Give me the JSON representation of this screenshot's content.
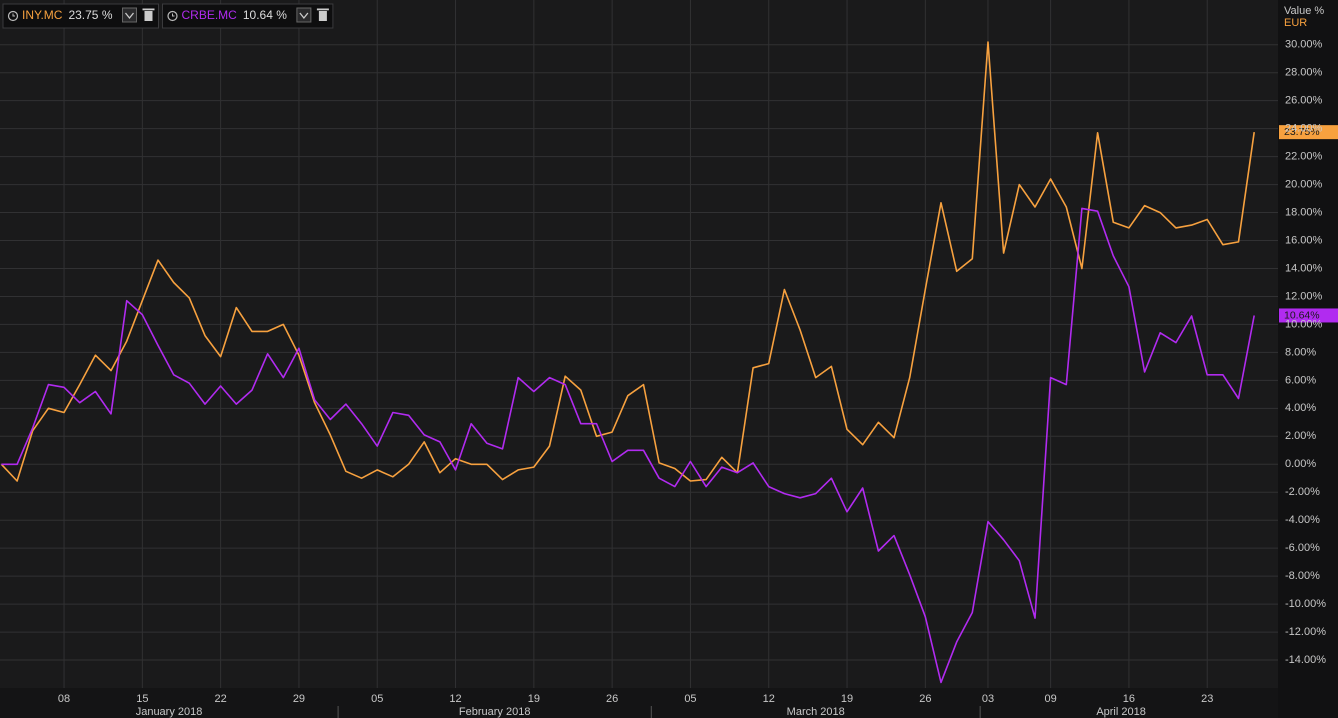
{
  "chart_data": {
    "type": "line",
    "axis_title": "Value %",
    "axis_unit": "EUR",
    "categories": [
      "2018-01-02",
      "2018-01-03",
      "2018-01-04",
      "2018-01-05",
      "2018-01-08",
      "2018-01-09",
      "2018-01-10",
      "2018-01-11",
      "2018-01-12",
      "2018-01-15",
      "2018-01-16",
      "2018-01-17",
      "2018-01-18",
      "2018-01-19",
      "2018-01-22",
      "2018-01-23",
      "2018-01-24",
      "2018-01-25",
      "2018-01-26",
      "2018-01-29",
      "2018-01-30",
      "2018-01-31",
      "2018-02-01",
      "2018-02-02",
      "2018-02-05",
      "2018-02-06",
      "2018-02-07",
      "2018-02-08",
      "2018-02-09",
      "2018-02-12",
      "2018-02-13",
      "2018-02-14",
      "2018-02-15",
      "2018-02-16",
      "2018-02-19",
      "2018-02-20",
      "2018-02-21",
      "2018-02-22",
      "2018-02-23",
      "2018-02-26",
      "2018-02-27",
      "2018-02-28",
      "2018-03-01",
      "2018-03-02",
      "2018-03-05",
      "2018-03-06",
      "2018-03-07",
      "2018-03-08",
      "2018-03-09",
      "2018-03-12",
      "2018-03-13",
      "2018-03-14",
      "2018-03-15",
      "2018-03-16",
      "2018-03-19",
      "2018-03-20",
      "2018-03-21",
      "2018-03-22",
      "2018-03-23",
      "2018-03-26",
      "2018-03-27",
      "2018-03-28",
      "2018-03-29",
      "2018-04-03",
      "2018-04-04",
      "2018-04-05",
      "2018-04-06",
      "2018-04-09",
      "2018-04-10",
      "2018-04-11",
      "2018-04-12",
      "2018-04-13",
      "2018-04-16",
      "2018-04-17",
      "2018-04-18",
      "2018-04-19",
      "2018-04-20",
      "2018-04-23",
      "2018-04-24",
      "2018-04-25",
      "2018-04-26"
    ],
    "xticks": [
      {
        "value": "2018-01-08",
        "label": "08"
      },
      {
        "value": "2018-01-15",
        "label": "15"
      },
      {
        "value": "2018-01-22",
        "label": "22"
      },
      {
        "value": "2018-01-29",
        "label": "29"
      },
      {
        "value": "2018-02-05",
        "label": "05"
      },
      {
        "value": "2018-02-12",
        "label": "12"
      },
      {
        "value": "2018-02-19",
        "label": "19"
      },
      {
        "value": "2018-02-26",
        "label": "26"
      },
      {
        "value": "2018-03-05",
        "label": "05"
      },
      {
        "value": "2018-03-12",
        "label": "12"
      },
      {
        "value": "2018-03-19",
        "label": "19"
      },
      {
        "value": "2018-03-26",
        "label": "26"
      },
      {
        "value": "2018-04-03",
        "label": "03"
      },
      {
        "value": "2018-04-09",
        "label": "09"
      },
      {
        "value": "2018-04-16",
        "label": "16"
      },
      {
        "value": "2018-04-23",
        "label": "23"
      }
    ],
    "months": [
      {
        "value": "2018-01",
        "label": "January 2018"
      },
      {
        "value": "2018-02",
        "label": "February 2018"
      },
      {
        "value": "2018-03",
        "label": "March 2018"
      },
      {
        "value": "2018-04",
        "label": "April 2018"
      }
    ],
    "ylim": [
      -16,
      33.2
    ],
    "yticks": [
      {
        "value": -14,
        "label": "-14.00%"
      },
      {
        "value": -12,
        "label": "-12.00%"
      },
      {
        "value": -10,
        "label": "-10.00%"
      },
      {
        "value": -8,
        "label": "-8.00%"
      },
      {
        "value": -6,
        "label": "-6.00%"
      },
      {
        "value": -4,
        "label": "-4.00%"
      },
      {
        "value": -2,
        "label": "-2.00%"
      },
      {
        "value": 0,
        "label": "0.00%"
      },
      {
        "value": 2,
        "label": "2.00%"
      },
      {
        "value": 4,
        "label": "4.00%"
      },
      {
        "value": 6,
        "label": "6.00%"
      },
      {
        "value": 8,
        "label": "8.00%"
      },
      {
        "value": 10,
        "label": "10.00%"
      },
      {
        "value": 12,
        "label": "12.00%"
      },
      {
        "value": 14,
        "label": "14.00%"
      },
      {
        "value": 16,
        "label": "16.00%"
      },
      {
        "value": 18,
        "label": "18.00%"
      },
      {
        "value": 20,
        "label": "20.00%"
      },
      {
        "value": 22,
        "label": "22.00%"
      },
      {
        "value": 24,
        "label": "24.00%"
      },
      {
        "value": 26,
        "label": "26.00%"
      },
      {
        "value": 28,
        "label": "28.00%"
      },
      {
        "value": 30,
        "label": "30.00%"
      }
    ],
    "grid": true,
    "series": [
      {
        "name": "INY.MC",
        "color": "#f7a13f",
        "legend_value": "23.75 %",
        "last_label": "23.75%",
        "values": [
          0,
          -1.2,
          2.4,
          4.0,
          3.7,
          5.7,
          7.8,
          6.7,
          8.8,
          11.7,
          14.6,
          13.0,
          11.9,
          9.2,
          7.7,
          11.2,
          9.5,
          9.5,
          10.0,
          7.8,
          4.4,
          2.1,
          -0.5,
          -1.0,
          -0.4,
          -0.9,
          0,
          1.6,
          -0.6,
          0.4,
          0,
          0,
          -1.1,
          -0.4,
          -0.2,
          1.3,
          6.3,
          5.3,
          2.0,
          2.3,
          4.9,
          5.7,
          0.1,
          -0.3,
          -1.2,
          -1.1,
          0.5,
          -0.6,
          6.9,
          7.2,
          12.5,
          9.6,
          6.2,
          7.0,
          2.5,
          1.4,
          3.0,
          1.9,
          6.2,
          12.5,
          18.7,
          13.8,
          14.7,
          30.2,
          15.1,
          20.0,
          18.4,
          20.4,
          18.4,
          14.0,
          23.7,
          17.3,
          16.9,
          18.5,
          18.0,
          16.9,
          17.1,
          17.5,
          15.7,
          15.9,
          23.75
        ]
      },
      {
        "name": "CRBE.MC",
        "color": "#b12bf0",
        "legend_value": "10.64 %",
        "last_label": "10.64%",
        "values": [
          0,
          0,
          2.6,
          5.7,
          5.5,
          4.4,
          5.2,
          3.6,
          11.7,
          10.7,
          8.5,
          6.4,
          5.8,
          4.3,
          5.6,
          4.3,
          5.3,
          7.9,
          6.2,
          8.3,
          4.6,
          3.2,
          4.3,
          2.9,
          1.3,
          3.7,
          3.5,
          2.1,
          1.6,
          -0.4,
          2.9,
          1.5,
          1.1,
          6.2,
          5.2,
          6.2,
          5.7,
          2.9,
          2.9,
          0.2,
          1.0,
          1.0,
          -1.0,
          -1.6,
          0.2,
          -1.6,
          -0.2,
          -0.6,
          0.1,
          -1.6,
          -2.1,
          -2.4,
          -2.1,
          -1.0,
          -3.4,
          -1.7,
          -6.2,
          -5.1,
          -7.9,
          -10.9,
          -15.6,
          -12.7,
          -10.6,
          -4.1,
          -5.4,
          -6.9,
          -11.0,
          6.2,
          5.7,
          18.3,
          18.1,
          14.9,
          12.7,
          6.6,
          9.4,
          8.7,
          10.6,
          6.4,
          6.4,
          4.7,
          10.64
        ]
      }
    ]
  }
}
